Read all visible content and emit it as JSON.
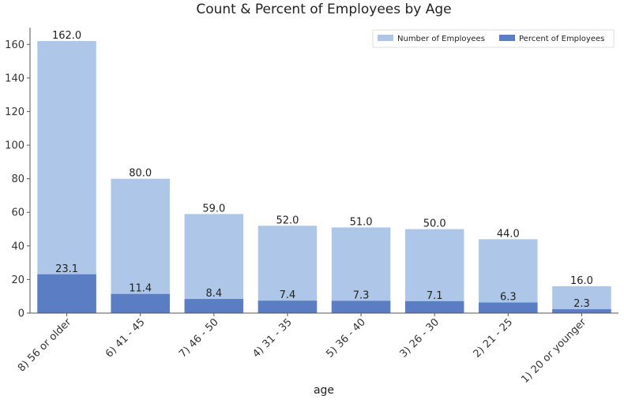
{
  "chart_data": {
    "type": "bar",
    "title": "Count & Percent of Employees by Age",
    "xlabel": "age",
    "ylabel": "",
    "ylim": [
      0,
      170
    ],
    "yticks": [
      0,
      20,
      40,
      60,
      80,
      100,
      120,
      140,
      160
    ],
    "grid": false,
    "legend_position": "top-right",
    "categories": [
      "8) 56 or older",
      "6) 41 - 45",
      "7) 46 - 50",
      "4) 31 - 35",
      "5) 36 - 40",
      "3) 26 - 30",
      "2) 21 - 25",
      "1) 20 or younger"
    ],
    "series": [
      {
        "name": "Number of Employees",
        "color": "#aec7e8",
        "values": [
          162.0,
          80.0,
          59.0,
          52.0,
          51.0,
          50.0,
          44.0,
          16.0
        ],
        "labels": [
          "162.0",
          "80.0",
          "59.0",
          "52.0",
          "51.0",
          "50.0",
          "44.0",
          "16.0"
        ]
      },
      {
        "name": "Percent of Employees",
        "color": "#5b7dc4",
        "values": [
          23.1,
          11.4,
          8.4,
          7.4,
          7.3,
          7.1,
          6.3,
          2.3
        ],
        "labels": [
          "23.1",
          "11.4",
          "8.4",
          "7.4",
          "7.3",
          "7.1",
          "6.3",
          "2.3"
        ]
      }
    ]
  }
}
